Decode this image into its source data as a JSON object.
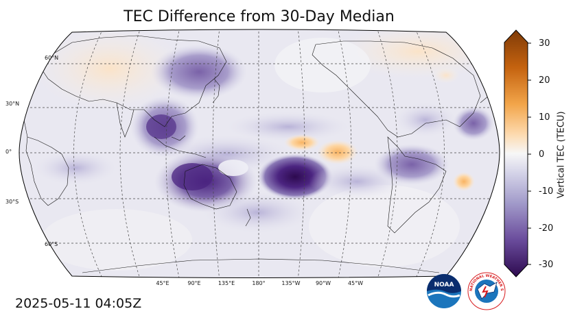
{
  "title": "TEC Difference from 30-Day Median",
  "timestamp": "2025-05-11 04:05Z",
  "colorbar": {
    "label": "Vertical TEC (TECU)",
    "ticks": [
      30,
      20,
      10,
      0,
      -10,
      -20,
      -30
    ],
    "min": -30,
    "max": 30
  },
  "graticule": {
    "lat_labels": [
      "60°N",
      "30°N",
      "0°",
      "30°S",
      "60°S"
    ],
    "lon_labels": [
      "45°E",
      "90°E",
      "135°E",
      "180°",
      "135°W",
      "90°W",
      "45°W"
    ]
  },
  "logos": {
    "noaa": "NOAA",
    "nws": "NATIONAL WEATHER SERVICE"
  },
  "colors": {
    "negative_strong": "#3b0f57",
    "negative_mid": "#8a78b5",
    "neutral": "#f2f2f2",
    "positive_mid": "#fdc888",
    "positive_strong": "#7f3b08"
  }
}
